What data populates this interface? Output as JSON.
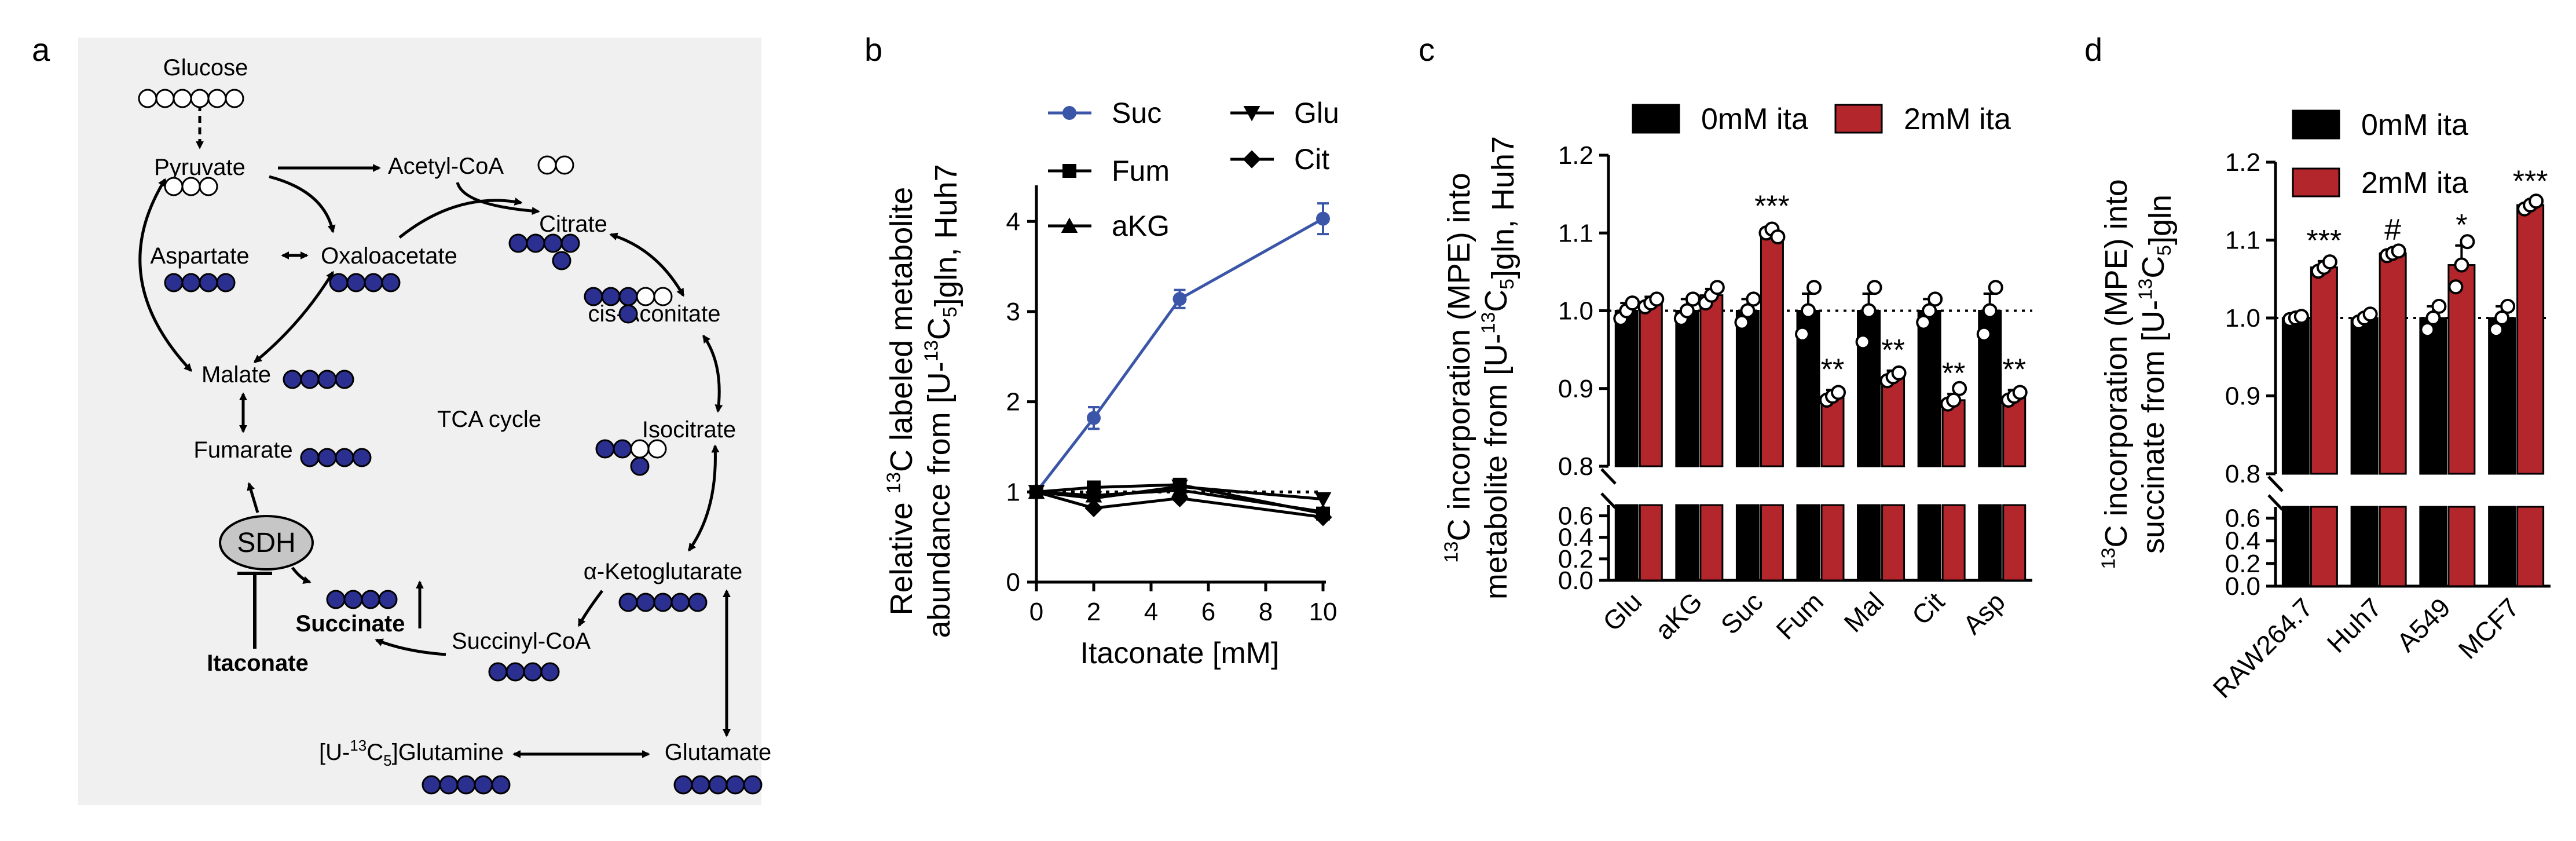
{
  "panel_labels": {
    "a": "a",
    "b": "b",
    "c": "c",
    "d": "d"
  },
  "colors": {
    "blue": "#3b56a8",
    "red": "#b3262b",
    "black": "#000000",
    "carbon": "#2b2f8f",
    "panel_bg": "#f0f0f0",
    "sdh": "#c6c6c6"
  },
  "pathway": {
    "glucose": "Glucose",
    "pyruvate": "Pyruvate",
    "acetylcoa": "Acetyl-CoA",
    "citrate": "Citrate",
    "aspartate": "Aspartate",
    "oxaloacetate": "Oxaloacetate",
    "cisaconitate": "cis-Aconitate",
    "malate": "Malate",
    "tca": "TCA cycle",
    "isocitrate": "Isocitrate",
    "fumarate": "Fumarate",
    "sdh": "SDH",
    "succinate": "Succinate",
    "akg": "α-Ketoglutarate",
    "itaconate": "Itaconate",
    "succinylcoa": "Succinyl-CoA",
    "gln_pre": "[U-",
    "gln_sup": "13",
    "gln_c": "C",
    "gln_sub": "5",
    "gln_post": "]Glutamine",
    "glutamate": "Glutamate"
  },
  "chart_data": [
    {
      "panel": "b",
      "type": "line",
      "xlabel": "Itaconate [mM]",
      "ylabel_lines": [
        "Relative 13C labeled metabolite",
        "abundance from [U-13C5]gln, Huh7"
      ],
      "xlim": [
        0,
        10
      ],
      "ylim": [
        0,
        4.4
      ],
      "xticks": [
        "0",
        "2",
        "4",
        "6",
        "8",
        "10"
      ],
      "yticks": [
        "0",
        "1",
        "2",
        "3",
        "4"
      ],
      "x": [
        0,
        2,
        5,
        10
      ],
      "reference_line": 1,
      "series": [
        {
          "name": "Suc",
          "marker": "circle",
          "values": [
            1.0,
            1.82,
            3.14,
            4.03
          ],
          "errors": [
            0.05,
            0.12,
            0.1,
            0.17
          ]
        },
        {
          "name": "Fum",
          "marker": "square",
          "values": [
            1.0,
            1.05,
            1.08,
            0.76
          ],
          "errors": [
            0.0,
            0.0,
            0.0,
            0.0
          ]
        },
        {
          "name": "aKG",
          "marker": "triangle-up",
          "values": [
            1.0,
            0.96,
            1.02,
            0.78
          ],
          "errors": [
            0.0,
            0.0,
            0.0,
            0.0
          ]
        },
        {
          "name": "Glu",
          "marker": "triangle-down",
          "values": [
            1.0,
            0.93,
            1.06,
            0.92
          ],
          "errors": [
            0.0,
            0.0,
            0.0,
            0.0
          ]
        },
        {
          "name": "Cit",
          "marker": "diamond",
          "values": [
            1.0,
            0.82,
            0.93,
            0.72
          ],
          "errors": [
            0.0,
            0.0,
            0.0,
            0.0
          ]
        }
      ]
    },
    {
      "panel": "c",
      "type": "bar",
      "ylabel_lines": [
        "13C incorporation (MPE) into",
        "metabolite from [U-13C5]gln, Huh7"
      ],
      "categories": [
        "Glu",
        "aKG",
        "Suc",
        "Fum",
        "Mal",
        "Cit",
        "Asp"
      ],
      "axis_break": {
        "lower": [
          0,
          0.7
        ],
        "upper": [
          0.8,
          1.2
        ]
      },
      "yticks_lower": [
        "0.0",
        "0.2",
        "0.4",
        "0.6"
      ],
      "yticks_upper": [
        "0.8",
        "0.9",
        "1.0",
        "1.1",
        "1.2"
      ],
      "reference_line": 1,
      "series": [
        {
          "name": "0mM ita",
          "values": [
            1.0,
            1.0,
            1.0,
            1.0,
            1.0,
            1.0,
            1.0
          ],
          "errors": [
            0.01,
            0.015,
            0.015,
            0.022,
            0.022,
            0.015,
            0.022
          ],
          "points": [
            [
              0.99,
              1.0,
              1.01
            ],
            [
              0.99,
              1.0,
              1.015
            ],
            [
              0.985,
              1.0,
              1.015
            ],
            [
              0.97,
              1.0,
              1.03
            ],
            [
              0.96,
              1.0,
              1.03
            ],
            [
              0.985,
              1.0,
              1.015
            ],
            [
              0.97,
              1.0,
              1.03
            ]
          ]
        },
        {
          "name": "2mM ita",
          "values": [
            1.01,
            1.02,
            1.1,
            0.89,
            0.915,
            0.885,
            0.89
          ],
          "errors": [
            0.008,
            0.008,
            0.008,
            0.008,
            0.008,
            0.008,
            0.008
          ],
          "points": [
            [
              1.005,
              1.01,
              1.015
            ],
            [
              1.01,
              1.02,
              1.03
            ],
            [
              1.1,
              1.105,
              1.095
            ],
            [
              0.885,
              0.89,
              0.895
            ],
            [
              0.91,
              0.915,
              0.92
            ],
            [
              0.88,
              0.885,
              0.9
            ],
            [
              0.885,
              0.89,
              0.895
            ]
          ]
        }
      ],
      "annotations": [
        "",
        "",
        "***",
        "**",
        "**",
        "**",
        "**"
      ]
    },
    {
      "panel": "d",
      "type": "bar",
      "ylabel_lines": [
        "13C incorporation (MPE) into",
        "succinate from [U-13C5]gln"
      ],
      "categories": [
        "RAW264.7",
        "Huh7",
        "A549",
        "MCF7"
      ],
      "axis_break": {
        "lower": [
          0,
          0.7
        ],
        "upper": [
          0.8,
          1.2
        ]
      },
      "yticks_lower": [
        "0.0",
        "0.2",
        "0.4",
        "0.6"
      ],
      "yticks_upper": [
        "0.8",
        "0.9",
        "1.0",
        "1.1",
        "1.2"
      ],
      "reference_line": 1,
      "series": [
        {
          "name": "0mM ita",
          "values": [
            1.0,
            1.0,
            1.0,
            1.0
          ],
          "errors": [
            0.003,
            0.005,
            0.015,
            0.015
          ],
          "points": [
            [
              0.998,
              1.0,
              1.002
            ],
            [
              0.995,
              1.0,
              1.005
            ],
            [
              0.985,
              1.0,
              1.015
            ],
            [
              0.985,
              1.0,
              1.015
            ]
          ]
        },
        {
          "name": "2mM ita",
          "values": [
            1.065,
            1.083,
            1.068,
            1.145
          ],
          "errors": [
            0.008,
            0.004,
            0.025,
            0.004
          ],
          "points": [
            [
              1.06,
              1.065,
              1.072
            ],
            [
              1.08,
              1.083,
              1.086
            ],
            [
              1.04,
              1.068,
              1.098
            ],
            [
              1.14,
              1.145,
              1.15
            ]
          ]
        }
      ],
      "annotations": [
        "***",
        "#",
        "*",
        "***"
      ]
    }
  ]
}
